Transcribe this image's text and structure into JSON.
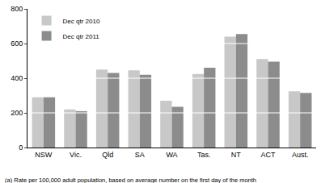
{
  "chart_data": {
    "type": "bar",
    "categories": [
      "NSW",
      "Vic.",
      "Qld",
      "SA",
      "WA",
      "Tas.",
      "NT",
      "ACT",
      "Aust."
    ],
    "series": [
      {
        "name": "Dec qtr 2010",
        "color": "#c8c8c8",
        "values": [
          290,
          220,
          450,
          445,
          270,
          425,
          640,
          510,
          325
        ]
      },
      {
        "name": "Dec qtr 2011",
        "color": "#8c8c8c",
        "values": [
          290,
          210,
          430,
          420,
          235,
          460,
          655,
          495,
          315
        ]
      }
    ],
    "ylim": [
      0,
      800
    ],
    "yticks": [
      0,
      200,
      400,
      600,
      800
    ],
    "grid": true,
    "legend": "top left",
    "footnote": "(a) Rate per 100,000 adult population, based on average number on the first day of the month"
  }
}
